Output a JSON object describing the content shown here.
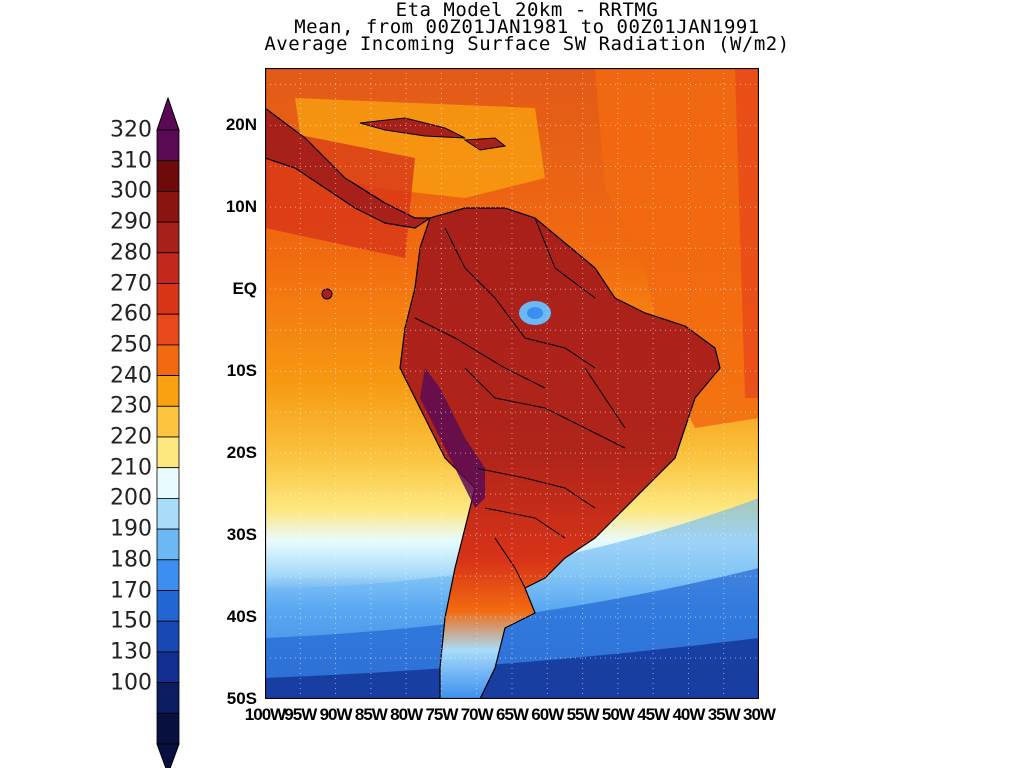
{
  "title": {
    "line1": "Eta Model 20km - RRTMG",
    "line2": "Mean, from 00Z01JAN1981 to 00Z01JAN1991",
    "line3": "Average Incoming Surface SW Radiation (W/m2)"
  },
  "colorbar": {
    "levels": [
      "320",
      "310",
      "300",
      "290",
      "280",
      "270",
      "260",
      "250",
      "240",
      "230",
      "220",
      "210",
      "200",
      "190",
      "180",
      "170",
      "150",
      "130",
      "100"
    ],
    "colors": [
      "#5a0a55",
      "#6e0a0a",
      "#8a1410",
      "#a8201a",
      "#c2281c",
      "#d83418",
      "#e8481a",
      "#f26a10",
      "#f9a010",
      "#fcc440",
      "#fde880",
      "#e8fbff",
      "#a8dcf8",
      "#6cb8f4",
      "#3c8ef0",
      "#2266d4",
      "#1848b4",
      "#122e90",
      "#0c1c60",
      "#081040"
    ],
    "top_arrow_color": "#5a0a55",
    "bottom_arrow_color": "#081040"
  },
  "map": {
    "lat_labels": [
      "20N",
      "10N",
      "EQ",
      "10S",
      "20S",
      "30S",
      "40S",
      "50S"
    ],
    "lon_labels": [
      "100W",
      "95W",
      "90W",
      "85W",
      "80W",
      "75W",
      "70W",
      "65W",
      "60W",
      "55W",
      "50W",
      "45W",
      "40W",
      "35W",
      "30W"
    ],
    "lon_range": [
      -100,
      -30
    ],
    "lat_range": [
      -50,
      27
    ],
    "field": "Average Incoming Surface SW Radiation",
    "units": "W/m2",
    "grid": true
  }
}
